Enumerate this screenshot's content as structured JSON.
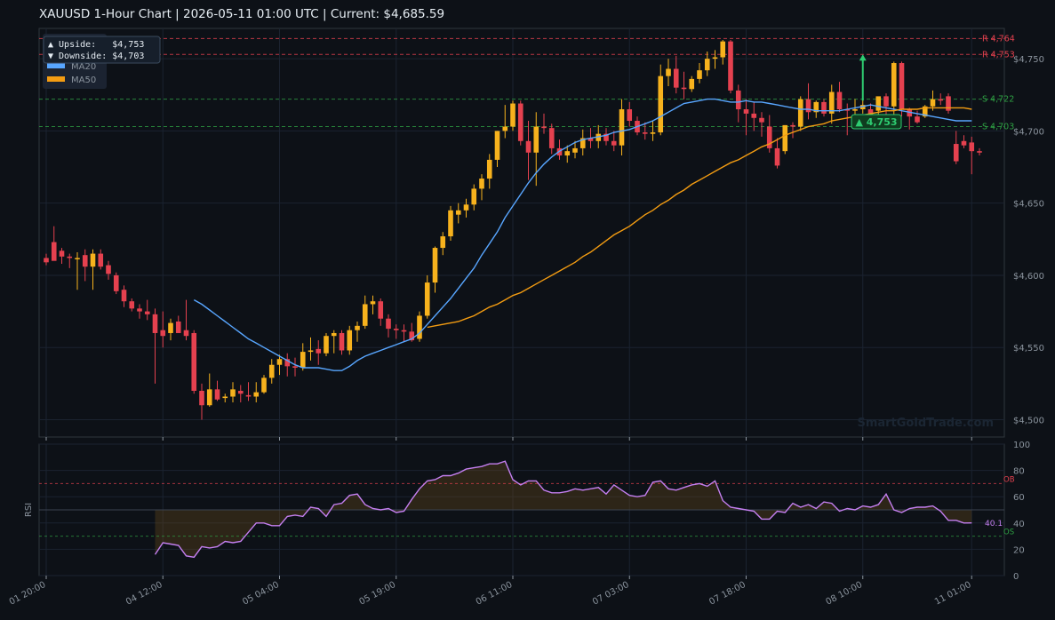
{
  "header": {
    "title": "XAUUSD  1-Hour Chart  |  2026-05-11 01:00 UTC  |  Current: $4,685.59"
  },
  "colors": {
    "background": "#0d1117",
    "panel": "#0d1117",
    "grid": "#1b2330",
    "bull": "#f7b21d",
    "bear": "#e5414f",
    "ma20": "#58a6ff",
    "ma50": "#f39c12",
    "resistance": "#e5414f",
    "support": "#2ea043",
    "rsi": "#c47ff0"
  },
  "chart_data": [
    {
      "type": "candlestick",
      "title": "XAUUSD  1-Hour Chart  |  2026-05-11 01:00 UTC  |  Current: $4,685.59",
      "ylim": [
        4488,
        4771
      ],
      "y_ticks": [
        4500,
        4550,
        4600,
        4650,
        4700,
        4750
      ],
      "y_tick_labels": [
        "$4,500",
        "$4,550",
        "$4,600",
        "$4,650",
        "$4,700",
        "$4,750"
      ],
      "x_tick_labels": [
        "01 20:00",
        "04 12:00",
        "05 04:00",
        "05 19:00",
        "06 11:00",
        "07 03:00",
        "07 18:00",
        "08 10:00",
        "11 01:00"
      ],
      "x_tick_index": [
        0,
        15,
        30,
        45,
        60,
        75,
        90,
        105,
        119
      ],
      "grid": true,
      "candles": [
        {
          "o": 4612,
          "h": 4615,
          "l": 4607,
          "c": 4609
        },
        {
          "o": 4623,
          "h": 4634,
          "l": 4612,
          "c": 4610
        },
        {
          "o": 4617,
          "h": 4619,
          "l": 4608,
          "c": 4613
        },
        {
          "o": 4613,
          "h": 4615,
          "l": 4605,
          "c": 4612
        },
        {
          "o": 4612,
          "h": 4616,
          "l": 4590,
          "c": 4612
        },
        {
          "o": 4614,
          "h": 4618,
          "l": 4596,
          "c": 4606
        },
        {
          "o": 4606,
          "h": 4618,
          "l": 4590,
          "c": 4615
        },
        {
          "o": 4615,
          "h": 4618,
          "l": 4604,
          "c": 4606
        },
        {
          "o": 4607,
          "h": 4610,
          "l": 4597,
          "c": 4601
        },
        {
          "o": 4600,
          "h": 4602,
          "l": 4587,
          "c": 4589
        },
        {
          "o": 4590,
          "h": 4593,
          "l": 4578,
          "c": 4582
        },
        {
          "o": 4582,
          "h": 4584,
          "l": 4575,
          "c": 4577
        },
        {
          "o": 4577,
          "h": 4580,
          "l": 4570,
          "c": 4575
        },
        {
          "o": 4575,
          "h": 4583,
          "l": 4569,
          "c": 4573
        },
        {
          "o": 4573,
          "h": 4577,
          "l": 4525,
          "c": 4560
        },
        {
          "o": 4562,
          "h": 4575,
          "l": 4550,
          "c": 4558
        },
        {
          "o": 4560,
          "h": 4570,
          "l": 4555,
          "c": 4567
        },
        {
          "o": 4568,
          "h": 4572,
          "l": 4560,
          "c": 4560
        },
        {
          "o": 4562,
          "h": 4583,
          "l": 4555,
          "c": 4558
        },
        {
          "o": 4560,
          "h": 4562,
          "l": 4518,
          "c": 4520
        },
        {
          "o": 4520,
          "h": 4525,
          "l": 4500,
          "c": 4510
        },
        {
          "o": 4510,
          "h": 4532,
          "l": 4509,
          "c": 4521
        },
        {
          "o": 4521,
          "h": 4527,
          "l": 4513,
          "c": 4514
        },
        {
          "o": 4515,
          "h": 4518,
          "l": 4512,
          "c": 4516
        },
        {
          "o": 4516,
          "h": 4526,
          "l": 4512,
          "c": 4521
        },
        {
          "o": 4520,
          "h": 4524,
          "l": 4512,
          "c": 4518
        },
        {
          "o": 4517,
          "h": 4526,
          "l": 4513,
          "c": 4516
        },
        {
          "o": 4516,
          "h": 4526,
          "l": 4512,
          "c": 4519
        },
        {
          "o": 4519,
          "h": 4531,
          "l": 4518,
          "c": 4529
        },
        {
          "o": 4529,
          "h": 4542,
          "l": 4525,
          "c": 4538
        },
        {
          "o": 4538,
          "h": 4545,
          "l": 4531,
          "c": 4542
        },
        {
          "o": 4542,
          "h": 4546,
          "l": 4530,
          "c": 4537
        },
        {
          "o": 4537,
          "h": 4543,
          "l": 4530,
          "c": 4536
        },
        {
          "o": 4536,
          "h": 4553,
          "l": 4534,
          "c": 4547
        },
        {
          "o": 4547,
          "h": 4557,
          "l": 4541,
          "c": 4548
        },
        {
          "o": 4549,
          "h": 4555,
          "l": 4538,
          "c": 4546
        },
        {
          "o": 4546,
          "h": 4560,
          "l": 4544,
          "c": 4558
        },
        {
          "o": 4558,
          "h": 4562,
          "l": 4546,
          "c": 4560
        },
        {
          "o": 4560,
          "h": 4562,
          "l": 4545,
          "c": 4548
        },
        {
          "o": 4548,
          "h": 4565,
          "l": 4545,
          "c": 4562
        },
        {
          "o": 4562,
          "h": 4568,
          "l": 4554,
          "c": 4565
        },
        {
          "o": 4565,
          "h": 4586,
          "l": 4563,
          "c": 4580
        },
        {
          "o": 4580,
          "h": 4586,
          "l": 4573,
          "c": 4582
        },
        {
          "o": 4582,
          "h": 4584,
          "l": 4565,
          "c": 4570
        },
        {
          "o": 4570,
          "h": 4573,
          "l": 4557,
          "c": 4563
        },
        {
          "o": 4563,
          "h": 4566,
          "l": 4556,
          "c": 4562
        },
        {
          "o": 4562,
          "h": 4566,
          "l": 4554,
          "c": 4561
        },
        {
          "o": 4561,
          "h": 4567,
          "l": 4554,
          "c": 4555
        },
        {
          "o": 4556,
          "h": 4575,
          "l": 4554,
          "c": 4572
        },
        {
          "o": 4572,
          "h": 4600,
          "l": 4570,
          "c": 4595
        },
        {
          "o": 4595,
          "h": 4620,
          "l": 4588,
          "c": 4619
        },
        {
          "o": 4619,
          "h": 4630,
          "l": 4614,
          "c": 4627
        },
        {
          "o": 4627,
          "h": 4648,
          "l": 4624,
          "c": 4645
        },
        {
          "o": 4642,
          "h": 4650,
          "l": 4636,
          "c": 4645
        },
        {
          "o": 4645,
          "h": 4653,
          "l": 4640,
          "c": 4649
        },
        {
          "o": 4649,
          "h": 4663,
          "l": 4645,
          "c": 4660
        },
        {
          "o": 4660,
          "h": 4670,
          "l": 4652,
          "c": 4667
        },
        {
          "o": 4667,
          "h": 4684,
          "l": 4660,
          "c": 4680
        },
        {
          "o": 4680,
          "h": 4700,
          "l": 4675,
          "c": 4700
        },
        {
          "o": 4700,
          "h": 4718,
          "l": 4695,
          "c": 4703
        },
        {
          "o": 4703,
          "h": 4721,
          "l": 4700,
          "c": 4719
        },
        {
          "o": 4719,
          "h": 4721,
          "l": 4690,
          "c": 4693
        },
        {
          "o": 4693,
          "h": 4707,
          "l": 4666,
          "c": 4685
        },
        {
          "o": 4685,
          "h": 4713,
          "l": 4662,
          "c": 4703
        },
        {
          "o": 4703,
          "h": 4712,
          "l": 4698,
          "c": 4702
        },
        {
          "o": 4702,
          "h": 4705,
          "l": 4684,
          "c": 4688
        },
        {
          "o": 4688,
          "h": 4694,
          "l": 4680,
          "c": 4683
        },
        {
          "o": 4683,
          "h": 4690,
          "l": 4678,
          "c": 4686
        },
        {
          "o": 4685,
          "h": 4693,
          "l": 4681,
          "c": 4688
        },
        {
          "o": 4688,
          "h": 4701,
          "l": 4683,
          "c": 4695
        },
        {
          "o": 4695,
          "h": 4702,
          "l": 4688,
          "c": 4693
        },
        {
          "o": 4693,
          "h": 4704,
          "l": 4688,
          "c": 4698
        },
        {
          "o": 4698,
          "h": 4702,
          "l": 4690,
          "c": 4693
        },
        {
          "o": 4693,
          "h": 4700,
          "l": 4686,
          "c": 4690
        },
        {
          "o": 4690,
          "h": 4722,
          "l": 4683,
          "c": 4715
        },
        {
          "o": 4715,
          "h": 4720,
          "l": 4703,
          "c": 4707
        },
        {
          "o": 4707,
          "h": 4710,
          "l": 4697,
          "c": 4699
        },
        {
          "o": 4699,
          "h": 4706,
          "l": 4694,
          "c": 4698
        },
        {
          "o": 4698,
          "h": 4707,
          "l": 4693,
          "c": 4699
        },
        {
          "o": 4699,
          "h": 4746,
          "l": 4697,
          "c": 4738
        },
        {
          "o": 4738,
          "h": 4750,
          "l": 4731,
          "c": 4743
        },
        {
          "o": 4743,
          "h": 4752,
          "l": 4726,
          "c": 4730
        },
        {
          "o": 4730,
          "h": 4741,
          "l": 4722,
          "c": 4729
        },
        {
          "o": 4729,
          "h": 4738,
          "l": 4727,
          "c": 4736
        },
        {
          "o": 4736,
          "h": 4747,
          "l": 4733,
          "c": 4742
        },
        {
          "o": 4742,
          "h": 4755,
          "l": 4738,
          "c": 4750
        },
        {
          "o": 4750,
          "h": 4756,
          "l": 4743,
          "c": 4751
        },
        {
          "o": 4751,
          "h": 4763,
          "l": 4746,
          "c": 4762
        },
        {
          "o": 4762,
          "h": 4763,
          "l": 4726,
          "c": 4728
        },
        {
          "o": 4728,
          "h": 4732,
          "l": 4706,
          "c": 4715
        },
        {
          "o": 4715,
          "h": 4722,
          "l": 4697,
          "c": 4712
        },
        {
          "o": 4712,
          "h": 4720,
          "l": 4700,
          "c": 4709
        },
        {
          "o": 4709,
          "h": 4713,
          "l": 4696,
          "c": 4706
        },
        {
          "o": 4703,
          "h": 4711,
          "l": 4685,
          "c": 4688
        },
        {
          "o": 4688,
          "h": 4695,
          "l": 4674,
          "c": 4676
        },
        {
          "o": 4686,
          "h": 4704,
          "l": 4684,
          "c": 4704
        },
        {
          "o": 4704,
          "h": 4706,
          "l": 4695,
          "c": 4703
        },
        {
          "o": 4703,
          "h": 4724,
          "l": 4700,
          "c": 4722
        },
        {
          "o": 4722,
          "h": 4733,
          "l": 4708,
          "c": 4713
        },
        {
          "o": 4713,
          "h": 4721,
          "l": 4709,
          "c": 4720
        },
        {
          "o": 4720,
          "h": 4722,
          "l": 4710,
          "c": 4712
        },
        {
          "o": 4712,
          "h": 4732,
          "l": 4705,
          "c": 4727
        },
        {
          "o": 4727,
          "h": 4734,
          "l": 4713,
          "c": 4715
        },
        {
          "o": 4715,
          "h": 4719,
          "l": 4697,
          "c": 4714
        },
        {
          "o": 4714,
          "h": 4722,
          "l": 4709,
          "c": 4715
        },
        {
          "o": 4715,
          "h": 4722,
          "l": 4712,
          "c": 4718
        },
        {
          "o": 4715,
          "h": 4719,
          "l": 4705,
          "c": 4711
        },
        {
          "o": 4714,
          "h": 4723,
          "l": 4709,
          "c": 4724
        },
        {
          "o": 4724,
          "h": 4726,
          "l": 4707,
          "c": 4717
        },
        {
          "o": 4717,
          "h": 4748,
          "l": 4711,
          "c": 4747
        },
        {
          "o": 4747,
          "h": 4748,
          "l": 4710,
          "c": 4715
        },
        {
          "o": 4715,
          "h": 4716,
          "l": 4701,
          "c": 4710
        },
        {
          "o": 4710,
          "h": 4714,
          "l": 4705,
          "c": 4706
        },
        {
          "o": 4710,
          "h": 4718,
          "l": 4709,
          "c": 4717
        },
        {
          "o": 4717,
          "h": 4728,
          "l": 4714,
          "c": 4722
        },
        {
          "o": 4722,
          "h": 4726,
          "l": 4718,
          "c": 4721
        },
        {
          "o": 4724,
          "h": 4726,
          "l": 4712,
          "c": 4714
        },
        {
          "o": 4691,
          "h": 4700,
          "l": 4677,
          "c": 4679
        },
        {
          "o": 4693,
          "h": 4697,
          "l": 4688,
          "c": 4690
        },
        {
          "o": 4692,
          "h": 4696,
          "l": 4670,
          "c": 4686
        },
        {
          "o": 4686,
          "h": 4688,
          "l": 4683,
          "c": 4685
        }
      ],
      "series": [
        {
          "name": "MA20",
          "color": "#58a6ff",
          "start": 19,
          "values": [
            4583,
            4580,
            4576,
            4572,
            4568,
            4564,
            4560,
            4556,
            4553,
            4550,
            4547,
            4544,
            4541,
            4538,
            4536,
            4536,
            4536,
            4535,
            4534,
            4534,
            4537,
            4541,
            4544,
            4546,
            4548,
            4550,
            4552,
            4554,
            4556,
            4560,
            4566,
            4572,
            4578,
            4584,
            4591,
            4598,
            4605,
            4614,
            4622,
            4630,
            4640,
            4648,
            4656,
            4664,
            4671,
            4677,
            4682,
            4686,
            4689,
            4692,
            4694,
            4695,
            4696,
            4697,
            4699,
            4700,
            4701,
            4703,
            4705,
            4707,
            4710,
            4713,
            4716,
            4719,
            4720,
            4721,
            4722,
            4722,
            4721,
            4720,
            4720,
            4721,
            4720,
            4720,
            4719,
            4718,
            4717,
            4716,
            4715,
            4715,
            4714,
            4714,
            4714,
            4714,
            4715,
            4716,
            4717,
            4718,
            4717,
            4716,
            4715,
            4714,
            4713,
            4712,
            4711,
            4710,
            4709,
            4708,
            4707,
            4707,
            4707
          ]
        },
        {
          "name": "MA50",
          "color": "#f39c12",
          "start": 49,
          "values": [
            4564,
            4565,
            4566,
            4567,
            4568,
            4570,
            4572,
            4575,
            4578,
            4580,
            4583,
            4586,
            4588,
            4591,
            4594,
            4597,
            4600,
            4603,
            4606,
            4609,
            4613,
            4616,
            4620,
            4624,
            4628,
            4631,
            4634,
            4638,
            4642,
            4645,
            4649,
            4652,
            4656,
            4659,
            4663,
            4666,
            4669,
            4672,
            4675,
            4678,
            4680,
            4683,
            4686,
            4689,
            4691,
            4694,
            4697,
            4699,
            4701,
            4703,
            4704,
            4705,
            4707,
            4708,
            4709,
            4710,
            4711,
            4712,
            4713,
            4714,
            4714,
            4715,
            4715,
            4715,
            4716,
            4716,
            4716,
            4716,
            4716,
            4716,
            4715
          ]
        }
      ],
      "levels": [
        {
          "label": "R 4,764",
          "value": 4764,
          "kind": "resistance"
        },
        {
          "label": "R 4,753",
          "value": 4753,
          "kind": "resistance"
        },
        {
          "label": "S 4,722",
          "value": 4722,
          "kind": "support"
        },
        {
          "label": "S 4,703",
          "value": 4703,
          "kind": "support"
        }
      ],
      "target_label": "▲ 4,753",
      "target_arrow": {
        "index": 105,
        "from": 4721,
        "to": 4753
      },
      "watermark": "SmartGoldTrade.com",
      "legend": {
        "upside": "▲ Upside:   $4,753",
        "downside": "▼ Downside: $4,703",
        "ma20": "MA20",
        "ma50": "MA50",
        "placement": "top-left"
      }
    },
    {
      "type": "line",
      "ylabel": "RSI",
      "ylim": [
        0,
        100
      ],
      "y_ticks": [
        0,
        20,
        40,
        60,
        80,
        100
      ],
      "ob_label": "OB",
      "os_label": "OS",
      "ob": 70,
      "os": 30,
      "mid": 50,
      "current_label": "40.1",
      "start": 14,
      "values": [
        16,
        25,
        24,
        23,
        15,
        14,
        22,
        21,
        22,
        26,
        25,
        26,
        33,
        40,
        40,
        38,
        38,
        45,
        46,
        45,
        52,
        51,
        45,
        54,
        55,
        61,
        62,
        54,
        51,
        50,
        51,
        48,
        49,
        58,
        66,
        72,
        73,
        76,
        76,
        78,
        81,
        82,
        83,
        85,
        85,
        87,
        73,
        69,
        72,
        72,
        65,
        63,
        63,
        64,
        66,
        65,
        66,
        67,
        62,
        69,
        65,
        61,
        60,
        61,
        71,
        72,
        66,
        65,
        67,
        69,
        70,
        68,
        72,
        57,
        52,
        51,
        50,
        49,
        43,
        43,
        49,
        48,
        55,
        52,
        54,
        51,
        56,
        55,
        49,
        51,
        50,
        53,
        52,
        54,
        62,
        50,
        48,
        51,
        52,
        52,
        53,
        49,
        42,
        42,
        40,
        40.1
      ]
    }
  ]
}
